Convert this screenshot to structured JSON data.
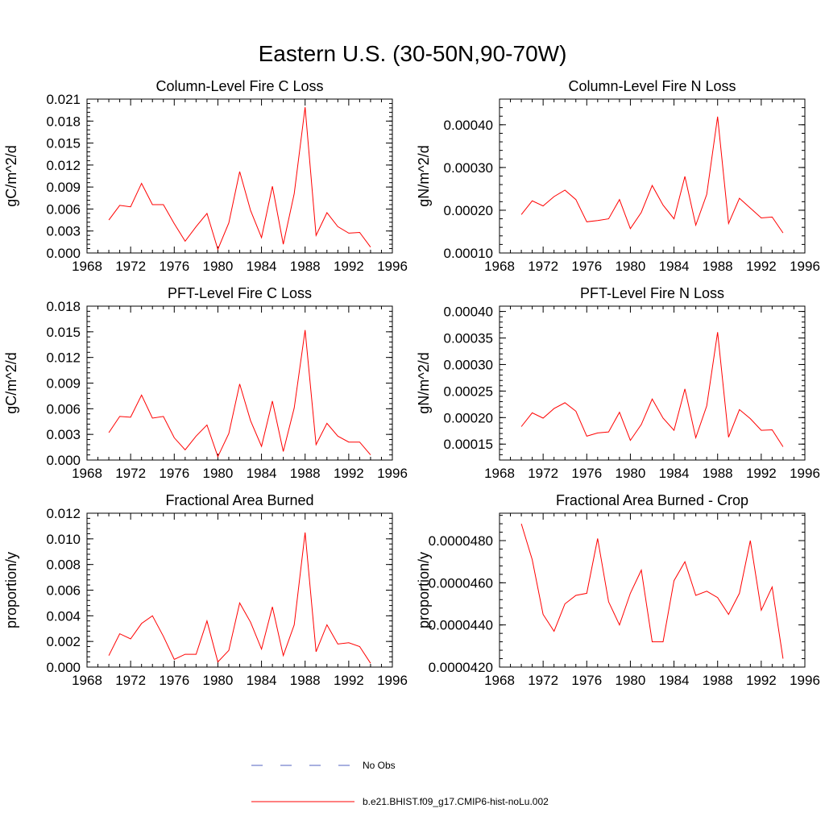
{
  "figure": {
    "title": "Eastern U.S. (30-50N,90-70W)"
  },
  "legend": {
    "obs_label": "No Obs",
    "obs_color": "#5060c0",
    "model_label": "b.e21.BHIST.f09_g17.CMIP6-hist-noLu.002",
    "model_color": "#ff0000"
  },
  "chart_data": [
    {
      "type": "line",
      "title": "Column-Level Fire C Loss",
      "ylabel": "gC/m^2/d",
      "xlim": [
        1968,
        1996
      ],
      "x_ticks": [
        "1968",
        "1972",
        "1976",
        "1980",
        "1984",
        "1988",
        "1992",
        "1996"
      ],
      "ylim": [
        0,
        0.021
      ],
      "y_ticks": [
        "0.000",
        "0.003",
        "0.006",
        "0.009",
        "0.012",
        "0.015",
        "0.018",
        "0.021"
      ],
      "x": [
        1970,
        1971,
        1972,
        1973,
        1974,
        1975,
        1976,
        1977,
        1978,
        1979,
        1980,
        1981,
        1982,
        1983,
        1984,
        1985,
        1986,
        1987,
        1988,
        1989,
        1990,
        1991,
        1992,
        1993,
        1994
      ],
      "series": [
        {
          "name": "b.e21.BHIST.f09_g17.CMIP6-hist-noLu.002",
          "values": [
            0.0045,
            0.0065,
            0.0063,
            0.0095,
            0.0066,
            0.0066,
            0.004,
            0.0016,
            0.0036,
            0.0054,
            0.0005,
            0.0041,
            0.0111,
            0.0058,
            0.0021,
            0.0091,
            0.0012,
            0.0081,
            0.0199,
            0.0024,
            0.0055,
            0.0036,
            0.0027,
            0.0028,
            0.0008
          ]
        }
      ]
    },
    {
      "type": "line",
      "title": "Column-Level Fire N Loss",
      "ylabel": "gN/m^2/d",
      "xlim": [
        1968,
        1996
      ],
      "x_ticks": [
        "1968",
        "1972",
        "1976",
        "1980",
        "1984",
        "1988",
        "1992",
        "1996"
      ],
      "ylim": [
        0.0001,
        0.00046
      ],
      "y_ticks": [
        "0.00010",
        "0.00020",
        "0.00030",
        "0.00040"
      ],
      "y_tick_values": [
        0.0001,
        0.0002,
        0.0003,
        0.0004
      ],
      "x": [
        1970,
        1971,
        1972,
        1973,
        1974,
        1975,
        1976,
        1977,
        1978,
        1979,
        1980,
        1981,
        1982,
        1983,
        1984,
        1985,
        1986,
        1987,
        1988,
        1989,
        1990,
        1991,
        1992,
        1993,
        1994
      ],
      "series": [
        {
          "name": "b.e21.BHIST.f09_g17.CMIP6-hist-noLu.002",
          "values": [
            0.00019,
            0.000222,
            0.00021,
            0.000232,
            0.000247,
            0.000225,
            0.000173,
            0.000176,
            0.00018,
            0.000225,
            0.000157,
            0.000195,
            0.000258,
            0.000212,
            0.00018,
            0.000279,
            0.000165,
            0.000237,
            0.000419,
            0.000169,
            0.000228,
            0.000205,
            0.000182,
            0.000184,
            0.000147
          ]
        }
      ]
    },
    {
      "type": "line",
      "title": "PFT-Level Fire C Loss",
      "ylabel": "gC/m^2/d",
      "xlim": [
        1968,
        1996
      ],
      "x_ticks": [
        "1968",
        "1972",
        "1976",
        "1980",
        "1984",
        "1988",
        "1992",
        "1996"
      ],
      "ylim": [
        0,
        0.018
      ],
      "y_ticks": [
        "0.000",
        "0.003",
        "0.006",
        "0.009",
        "0.012",
        "0.015",
        "0.018"
      ],
      "x": [
        1970,
        1971,
        1972,
        1973,
        1974,
        1975,
        1976,
        1977,
        1978,
        1979,
        1980,
        1981,
        1982,
        1983,
        1984,
        1985,
        1986,
        1987,
        1988,
        1989,
        1990,
        1991,
        1992,
        1993,
        1994
      ],
      "series": [
        {
          "name": "b.e21.BHIST.f09_g17.CMIP6-hist-noLu.002",
          "values": [
            0.0032,
            0.0051,
            0.005,
            0.0076,
            0.0049,
            0.0051,
            0.0026,
            0.0012,
            0.0028,
            0.0041,
            0.0004,
            0.0031,
            0.0089,
            0.0046,
            0.0016,
            0.0069,
            0.001,
            0.0061,
            0.0152,
            0.0018,
            0.0043,
            0.0028,
            0.0021,
            0.0021,
            0.0006
          ]
        }
      ]
    },
    {
      "type": "line",
      "title": "PFT-Level Fire N Loss",
      "ylabel": "gN/m^2/d",
      "xlim": [
        1968,
        1996
      ],
      "x_ticks": [
        "1968",
        "1972",
        "1976",
        "1980",
        "1984",
        "1988",
        "1992",
        "1996"
      ],
      "ylim": [
        0.00012,
        0.00041
      ],
      "y_ticks": [
        "0.00015",
        "0.00020",
        "0.00025",
        "0.00030",
        "0.00035",
        "0.00040"
      ],
      "y_tick_values": [
        0.00015,
        0.0002,
        0.00025,
        0.0003,
        0.00035,
        0.0004
      ],
      "x": [
        1970,
        1971,
        1972,
        1973,
        1974,
        1975,
        1976,
        1977,
        1978,
        1979,
        1980,
        1981,
        1982,
        1983,
        1984,
        1985,
        1986,
        1987,
        1988,
        1989,
        1990,
        1991,
        1992,
        1993,
        1994
      ],
      "series": [
        {
          "name": "b.e21.BHIST.f09_g17.CMIP6-hist-noLu.002",
          "values": [
            0.000183,
            0.000209,
            0.000199,
            0.000217,
            0.000228,
            0.000212,
            0.000165,
            0.000171,
            0.000173,
            0.00021,
            0.000157,
            0.000187,
            0.000235,
            0.000199,
            0.000176,
            0.000254,
            0.000162,
            0.000222,
            0.000361,
            0.000163,
            0.000215,
            0.000198,
            0.000176,
            0.000177,
            0.000145
          ]
        }
      ]
    },
    {
      "type": "line",
      "title": "Fractional Area Burned",
      "ylabel": "proportion/y",
      "xlim": [
        1968,
        1996
      ],
      "x_ticks": [
        "1968",
        "1972",
        "1976",
        "1980",
        "1984",
        "1988",
        "1992",
        "1996"
      ],
      "ylim": [
        0,
        0.012
      ],
      "y_ticks": [
        "0.000",
        "0.002",
        "0.004",
        "0.006",
        "0.008",
        "0.010",
        "0.012"
      ],
      "x": [
        1970,
        1971,
        1972,
        1973,
        1974,
        1975,
        1976,
        1977,
        1978,
        1979,
        1980,
        1981,
        1982,
        1983,
        1984,
        1985,
        1986,
        1987,
        1988,
        1989,
        1990,
        1991,
        1992,
        1993,
        1994
      ],
      "series": [
        {
          "name": "b.e21.BHIST.f09_g17.CMIP6-hist-noLu.002",
          "values": [
            0.0009,
            0.0026,
            0.0022,
            0.0034,
            0.004,
            0.0024,
            0.0006,
            0.001,
            0.001,
            0.0036,
            0.0004,
            0.0013,
            0.005,
            0.0035,
            0.0014,
            0.0047,
            0.0009,
            0.0033,
            0.0105,
            0.0012,
            0.0033,
            0.0018,
            0.0019,
            0.0016,
            0.0003
          ]
        }
      ]
    },
    {
      "type": "line",
      "title": "Fractional Area Burned - Crop",
      "ylabel": "proportion/y",
      "xlim": [
        1968,
        1996
      ],
      "x_ticks": [
        "1968",
        "1972",
        "1976",
        "1980",
        "1984",
        "1988",
        "1992",
        "1996"
      ],
      "ylim": [
        4.2e-05,
        4.93e-05
      ],
      "y_ticks": [
        "0.0000420",
        "0.0000440",
        "0.0000460",
        "0.0000480"
      ],
      "y_tick_values": [
        4.2e-05,
        4.4e-05,
        4.6e-05,
        4.8e-05
      ],
      "x": [
        1970,
        1971,
        1972,
        1973,
        1974,
        1975,
        1976,
        1977,
        1978,
        1979,
        1980,
        1981,
        1982,
        1983,
        1984,
        1985,
        1986,
        1987,
        1988,
        1989,
        1990,
        1991,
        1992,
        1993,
        1994
      ],
      "series": [
        {
          "name": "b.e21.BHIST.f09_g17.CMIP6-hist-noLu.002",
          "values": [
            4.88e-05,
            4.71e-05,
            4.45e-05,
            4.37e-05,
            4.5e-05,
            4.54e-05,
            4.55e-05,
            4.81e-05,
            4.51e-05,
            4.4e-05,
            4.55e-05,
            4.66e-05,
            4.32e-05,
            4.32e-05,
            4.61e-05,
            4.7e-05,
            4.54e-05,
            4.56e-05,
            4.53e-05,
            4.45e-05,
            4.55e-05,
            4.8e-05,
            4.47e-05,
            4.58e-05,
            4.24e-05
          ]
        }
      ]
    }
  ]
}
